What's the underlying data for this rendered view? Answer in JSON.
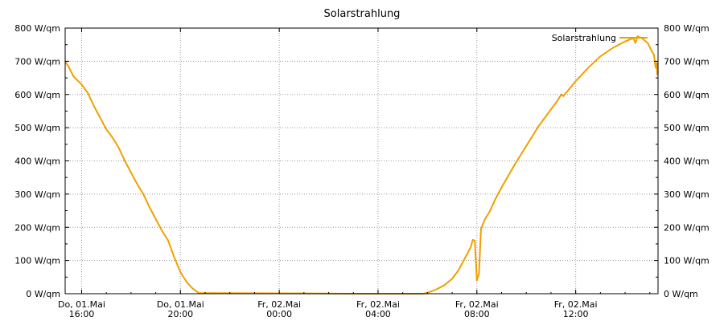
{
  "chart_data": {
    "type": "line",
    "title": "Solarstrahlung",
    "xlabel": "",
    "ylabel": "",
    "unit": "W/qm",
    "ylim": [
      0,
      800
    ],
    "y_ticks": [
      0,
      100,
      200,
      300,
      400,
      500,
      600,
      700,
      800
    ],
    "y_tick_labels": [
      "0 W/qm",
      "100 W/qm",
      "200 W/qm",
      "300 W/qm",
      "400 W/qm",
      "500 W/qm",
      "600 W/qm",
      "700 W/qm",
      "800 W/qm"
    ],
    "xlim": [
      "2025-05-01 15:20",
      "2025-05-02 15:20"
    ],
    "x_ticks": [
      {
        "time": "2025-05-01 16:00",
        "label_line1": "Do, 01.Mai",
        "label_line2": "16:00"
      },
      {
        "time": "2025-05-01 20:00",
        "label_line1": "Do, 01.Mai",
        "label_line2": "20:00"
      },
      {
        "time": "2025-05-02 00:00",
        "label_line1": "Fr, 02.Mai",
        "label_line2": "00:00"
      },
      {
        "time": "2025-05-02 04:00",
        "label_line1": "Fr, 02.Mai",
        "label_line2": "04:00"
      },
      {
        "time": "2025-05-02 08:00",
        "label_line1": "Fr, 02.Mai",
        "label_line2": "08:00"
      },
      {
        "time": "2025-05-02 12:00",
        "label_line1": "Fr, 02.Mai",
        "label_line2": "12:00"
      }
    ],
    "grid": true,
    "legend": {
      "position": "top-right"
    },
    "series": [
      {
        "name": "Solarstrahlung",
        "color": "#f0a000",
        "points": [
          [
            "2025-05-01 15:20",
            700
          ],
          [
            "2025-05-01 15:30",
            680
          ],
          [
            "2025-05-01 15:40",
            655
          ],
          [
            "2025-05-01 16:00",
            630
          ],
          [
            "2025-05-01 16:15",
            605
          ],
          [
            "2025-05-01 16:30",
            565
          ],
          [
            "2025-05-01 16:45",
            530
          ],
          [
            "2025-05-01 17:00",
            495
          ],
          [
            "2025-05-01 17:15",
            470
          ],
          [
            "2025-05-01 17:30",
            440
          ],
          [
            "2025-05-01 17:45",
            400
          ],
          [
            "2025-05-01 18:00",
            365
          ],
          [
            "2025-05-01 18:15",
            330
          ],
          [
            "2025-05-01 18:30",
            300
          ],
          [
            "2025-05-01 18:45",
            260
          ],
          [
            "2025-05-01 19:00",
            225
          ],
          [
            "2025-05-01 19:15",
            190
          ],
          [
            "2025-05-01 19:30",
            160
          ],
          [
            "2025-05-01 19:45",
            110
          ],
          [
            "2025-05-01 20:00",
            65
          ],
          [
            "2025-05-01 20:15",
            35
          ],
          [
            "2025-05-01 20:30",
            15
          ],
          [
            "2025-05-01 20:40",
            6
          ],
          [
            "2025-05-01 20:45",
            2
          ],
          [
            "2025-05-02 01:00",
            1
          ],
          [
            "2025-05-02 03:00",
            0
          ],
          [
            "2025-05-02 05:50",
            0
          ],
          [
            "2025-05-02 06:00",
            3
          ],
          [
            "2025-05-02 06:20",
            12
          ],
          [
            "2025-05-02 06:40",
            25
          ],
          [
            "2025-05-02 07:00",
            45
          ],
          [
            "2025-05-02 07:15",
            70
          ],
          [
            "2025-05-02 07:30",
            105
          ],
          [
            "2025-05-02 07:45",
            140
          ],
          [
            "2025-05-02 07:50",
            162
          ],
          [
            "2025-05-02 07:55",
            160
          ],
          [
            "2025-05-02 08:00",
            40
          ],
          [
            "2025-05-02 08:05",
            60
          ],
          [
            "2025-05-02 08:10",
            195
          ],
          [
            "2025-05-02 08:20",
            225
          ],
          [
            "2025-05-02 08:30",
            245
          ],
          [
            "2025-05-02 08:45",
            285
          ],
          [
            "2025-05-02 09:00",
            320
          ],
          [
            "2025-05-02 09:30",
            385
          ],
          [
            "2025-05-02 10:00",
            445
          ],
          [
            "2025-05-02 10:30",
            505
          ],
          [
            "2025-05-02 11:00",
            555
          ],
          [
            "2025-05-02 11:15",
            580
          ],
          [
            "2025-05-02 11:25",
            600
          ],
          [
            "2025-05-02 11:30",
            595
          ],
          [
            "2025-05-02 12:00",
            640
          ],
          [
            "2025-05-02 12:30",
            680
          ],
          [
            "2025-05-02 13:00",
            715
          ],
          [
            "2025-05-02 13:30",
            740
          ],
          [
            "2025-05-02 14:00",
            760
          ],
          [
            "2025-05-02 14:20",
            770
          ],
          [
            "2025-05-02 14:25",
            755
          ],
          [
            "2025-05-02 14:30",
            775
          ],
          [
            "2025-05-02 14:40",
            770
          ],
          [
            "2025-05-02 14:55",
            755
          ],
          [
            "2025-05-02 15:05",
            730
          ],
          [
            "2025-05-02 15:10",
            720
          ],
          [
            "2025-05-02 15:13",
            690
          ],
          [
            "2025-05-02 15:15",
            680
          ],
          [
            "2025-05-02 15:17",
            695
          ],
          [
            "2025-05-02 15:18",
            660
          ],
          [
            "2025-05-02 15:20",
            670
          ]
        ]
      }
    ]
  }
}
